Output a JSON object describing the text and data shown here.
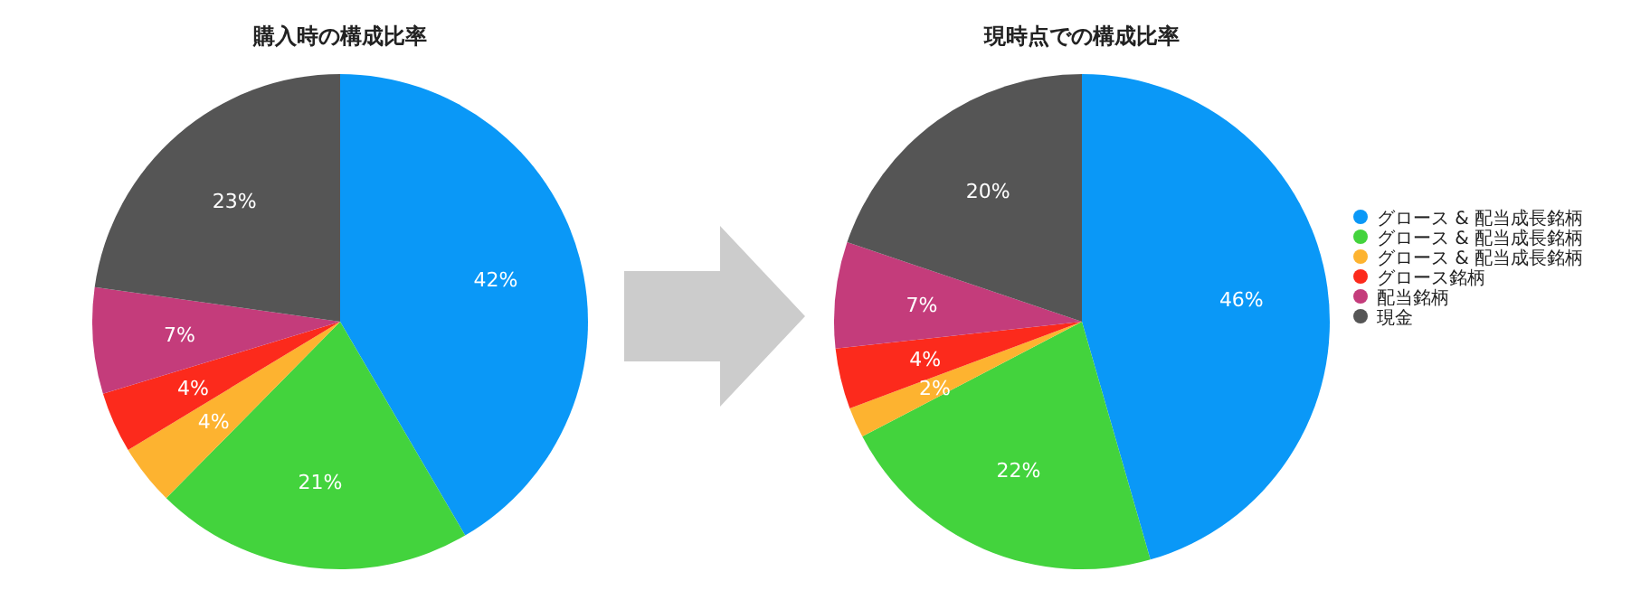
{
  "chart_data": [
    {
      "type": "pie",
      "title": "購入時の構成比率",
      "categories": [
        null,
        null,
        null,
        null,
        null,
        null
      ],
      "values": [
        42,
        21,
        4,
        4,
        7,
        23
      ],
      "value_labels": [
        "42%",
        "21%",
        "4%",
        "4%",
        "7%",
        "23%"
      ],
      "colors": [
        "#0a98f7",
        "#43d33d",
        "#fdb330",
        "#fc2a1c",
        "#c43c7b",
        "#555555"
      ],
      "legend": false
    },
    {
      "type": "pie",
      "title": "現時点での構成比率",
      "categories": [
        "グロース & 配当成長銘柄",
        "グロース & 配当成長銘柄",
        "グロース & 配当成長銘柄",
        "グロース銘柄",
        "配当銘柄",
        "現金"
      ],
      "values": [
        46,
        22,
        2,
        4,
        7,
        20
      ],
      "value_labels": [
        "46%",
        "22%",
        "2%",
        "4%",
        "7%",
        "20%"
      ],
      "colors": [
        "#0a98f7",
        "#43d33d",
        "#fdb330",
        "#fc2a1c",
        "#c43c7b",
        "#555555"
      ],
      "legend": "right"
    }
  ]
}
